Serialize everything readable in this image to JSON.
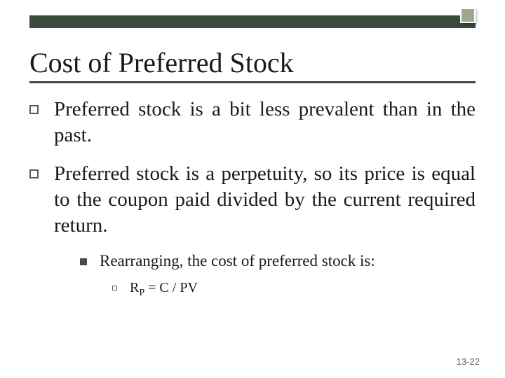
{
  "colors": {
    "dark_bar": "#3a4a3a",
    "accent_box": "#9aa88f",
    "text": "#1a1a1a",
    "page_num": "#666666"
  },
  "title": "Cost of Preferred Stock",
  "bullets": [
    {
      "text": "Preferred stock is a bit less prevalent than in the past."
    },
    {
      "text": "Preferred stock is a perpetuity, so its price is equal to the coupon paid divided by the current required return."
    }
  ],
  "sub_bullet": "Rearranging, the cost of preferred stock is:",
  "formula_prefix": "R",
  "formula_subscript": "P",
  "formula_suffix": " = C / PV",
  "page_number": "13-22"
}
